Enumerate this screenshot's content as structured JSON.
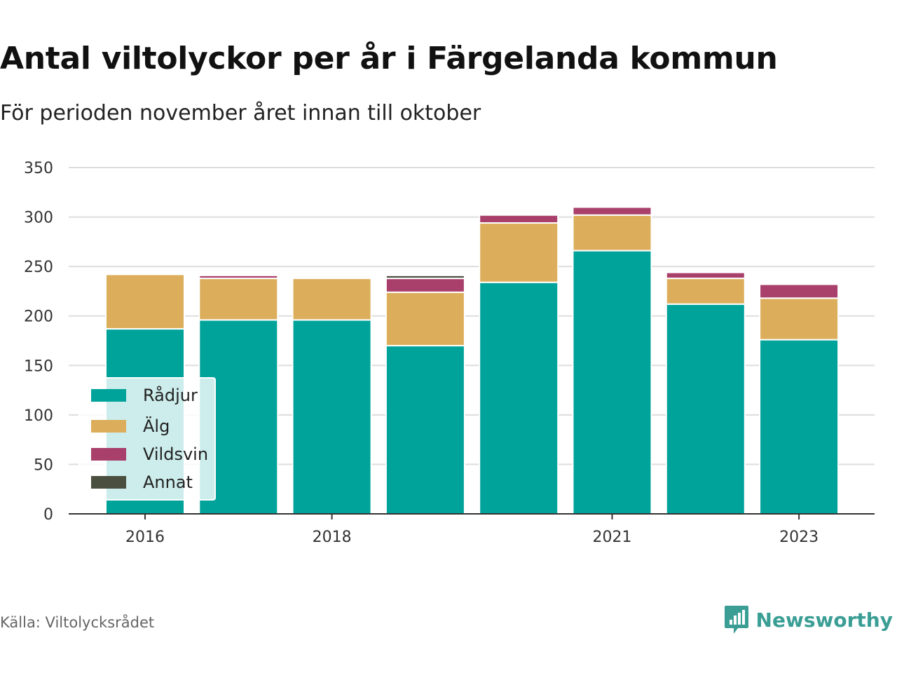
{
  "header": {
    "title": "Antal viltolyckor per år i Färgelanda kommun",
    "subtitle": "För perioden november året innan till oktober"
  },
  "footer": {
    "source": "Källa: Viltolycksrådet",
    "brand": "Newsworthy"
  },
  "colors": {
    "Rådjur": "#00a39a",
    "Älg": "#dcae5c",
    "Vildsvin": "#a8406b",
    "Annat": "#4a4f40",
    "grid": "#dddddd",
    "axis": "#333333",
    "brand": "#3a9e95"
  },
  "chart_data": {
    "type": "bar",
    "stacked": true,
    "categories": [
      "2016",
      "2017",
      "2018",
      "2019",
      "2020",
      "2021",
      "2022",
      "2023"
    ],
    "x_tick_labels": [
      "2016",
      "2018",
      "2021",
      "2023"
    ],
    "series": [
      {
        "name": "Rådjur",
        "values": [
          187,
          196,
          196,
          170,
          234,
          266,
          212,
          176
        ]
      },
      {
        "name": "Älg",
        "values": [
          55,
          42,
          42,
          54,
          60,
          36,
          26,
          42
        ]
      },
      {
        "name": "Vildsvin",
        "values": [
          0,
          3,
          0,
          14,
          8,
          8,
          6,
          14
        ]
      },
      {
        "name": "Annat",
        "values": [
          0,
          0,
          0,
          3,
          0,
          0,
          0,
          0
        ]
      }
    ],
    "y_ticks": [
      "0",
      "50",
      "100",
      "150",
      "200",
      "250",
      "300",
      "350"
    ],
    "ylim": [
      0,
      350
    ],
    "grid": true,
    "legend_position": "bottom-left",
    "xlabel": "",
    "ylabel": ""
  }
}
